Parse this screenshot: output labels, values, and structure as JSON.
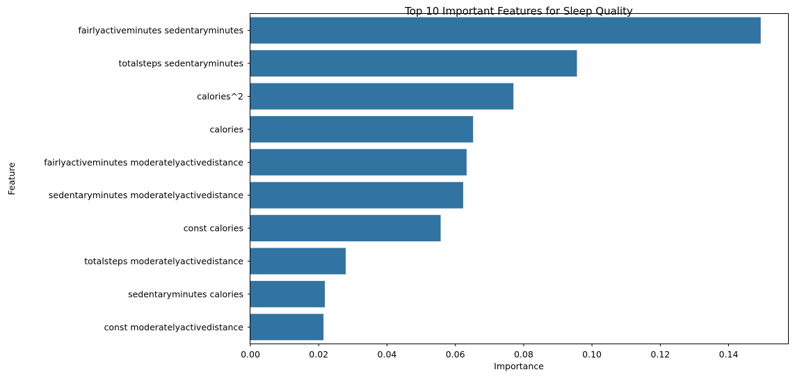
{
  "chart_data": {
    "type": "bar",
    "orientation": "horizontal",
    "title": "Top 10 Important Features for Sleep Quality",
    "xlabel": "Importance",
    "ylabel": "Feature",
    "xlim": [
      0,
      0.1574
    ],
    "xticks": [
      "0.00",
      "0.02",
      "0.04",
      "0.06",
      "0.08",
      "0.10",
      "0.12",
      "0.14"
    ],
    "xtick_values": [
      0,
      0.02,
      0.04,
      0.06,
      0.08,
      0.1,
      0.12,
      0.14
    ],
    "bar_color": "#3274a1",
    "grid": false,
    "categories": [
      "fairlyactiveminutes sedentaryminutes",
      "totalsteps sedentaryminutes",
      "calories^2",
      "calories",
      "fairlyactiveminutes moderatelyactivedistance",
      "sedentaryminutes moderatelyactivedistance",
      "const calories",
      "totalsteps moderatelyactivedistance",
      "sedentaryminutes calories",
      "const moderatelyactivedistance"
    ],
    "values": [
      0.1494,
      0.0956,
      0.077,
      0.0652,
      0.0633,
      0.0623,
      0.0557,
      0.0279,
      0.0218,
      0.0214
    ]
  }
}
